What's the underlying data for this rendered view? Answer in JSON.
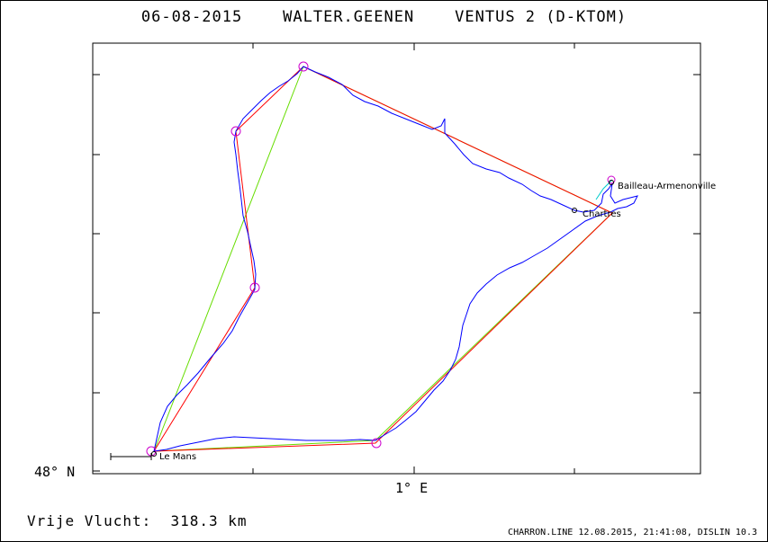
{
  "title": "06-08-2015    WALTER.GEENEN    VENTUS 2 (D-KTOM)",
  "axes": {
    "lat_label": "48° N",
    "lon_label": "1° E"
  },
  "places": [
    {
      "name": "Bailleau-Armenonville"
    },
    {
      "name": "Chartres"
    },
    {
      "name": "Le Mans"
    }
  ],
  "footer": {
    "distance_label": "Vrije Vlucht:",
    "distance_value": "318.3 km",
    "info": "CHARRON.LINE 12.08.2015, 21:41:08, DISLIN 10.3"
  },
  "colors": {
    "track": "#0000ff",
    "task": "#ff0000",
    "optimized": "#66dd00",
    "turnpoint": "#cc00cc",
    "extra": "#00cccc"
  }
}
